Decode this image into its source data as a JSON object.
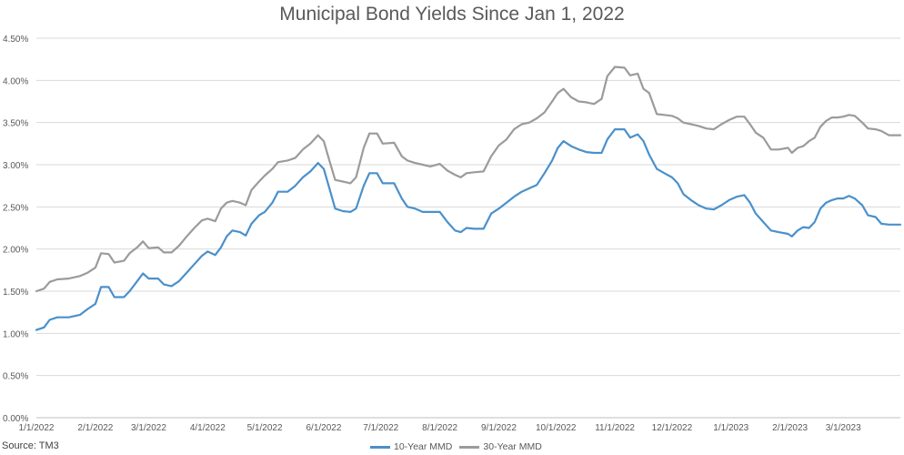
{
  "chart_data": {
    "type": "line",
    "title": "Municipal Bond Yields Since Jan 1, 2022",
    "source": "Source: TM3",
    "ylim": [
      0,
      4.5
    ],
    "y_ticks": [
      "0.00%",
      "0.50%",
      "1.00%",
      "1.50%",
      "2.00%",
      "2.50%",
      "3.00%",
      "3.50%",
      "4.00%",
      "4.50%"
    ],
    "x_range": [
      "2022-01-01",
      "2023-03-31"
    ],
    "x_ticks": [
      {
        "date": "2022-01-01",
        "label": "1/1/2022"
      },
      {
        "date": "2022-02-01",
        "label": "2/1/2022"
      },
      {
        "date": "2022-03-01",
        "label": "3/1/2022"
      },
      {
        "date": "2022-04-01",
        "label": "4/1/2022"
      },
      {
        "date": "2022-05-01",
        "label": "5/1/2022"
      },
      {
        "date": "2022-06-01",
        "label": "6/1/2022"
      },
      {
        "date": "2022-07-01",
        "label": "7/1/2022"
      },
      {
        "date": "2022-08-01",
        "label": "8/1/2022"
      },
      {
        "date": "2022-09-01",
        "label": "9/1/2022"
      },
      {
        "date": "2022-10-01",
        "label": "10/1/2022"
      },
      {
        "date": "2022-11-01",
        "label": "11/1/2022"
      },
      {
        "date": "2022-12-01",
        "label": "12/1/2022"
      },
      {
        "date": "2023-01-01",
        "label": "1/1/2023"
      },
      {
        "date": "2023-02-01",
        "label": "2/1/2023"
      },
      {
        "date": "2023-03-01",
        "label": "3/1/2023"
      }
    ],
    "grid": true,
    "legend_position": "bottom",
    "series": [
      {
        "name": "10-Year MMD",
        "color": "#4a90cb",
        "points": [
          [
            "2022-01-01",
            1.04
          ],
          [
            "2022-01-05",
            1.07
          ],
          [
            "2022-01-08",
            1.16
          ],
          [
            "2022-01-12",
            1.19
          ],
          [
            "2022-01-18",
            1.19
          ],
          [
            "2022-01-24",
            1.22
          ],
          [
            "2022-01-28",
            1.29
          ],
          [
            "2022-02-01",
            1.35
          ],
          [
            "2022-02-04",
            1.55
          ],
          [
            "2022-02-08",
            1.55
          ],
          [
            "2022-02-11",
            1.43
          ],
          [
            "2022-02-16",
            1.43
          ],
          [
            "2022-02-19",
            1.5
          ],
          [
            "2022-02-23",
            1.62
          ],
          [
            "2022-02-26",
            1.71
          ],
          [
            "2022-03-01",
            1.65
          ],
          [
            "2022-03-06",
            1.65
          ],
          [
            "2022-03-09",
            1.58
          ],
          [
            "2022-03-13",
            1.56
          ],
          [
            "2022-03-17",
            1.62
          ],
          [
            "2022-03-21",
            1.72
          ],
          [
            "2022-03-25",
            1.82
          ],
          [
            "2022-03-29",
            1.92
          ],
          [
            "2022-04-01",
            1.97
          ],
          [
            "2022-04-05",
            1.93
          ],
          [
            "2022-04-08",
            2.02
          ],
          [
            "2022-04-11",
            2.15
          ],
          [
            "2022-04-14",
            2.22
          ],
          [
            "2022-04-18",
            2.2
          ],
          [
            "2022-04-21",
            2.16
          ],
          [
            "2022-04-24",
            2.3
          ],
          [
            "2022-04-28",
            2.4
          ],
          [
            "2022-05-01",
            2.44
          ],
          [
            "2022-05-05",
            2.55
          ],
          [
            "2022-05-08",
            2.68
          ],
          [
            "2022-05-13",
            2.68
          ],
          [
            "2022-05-17",
            2.75
          ],
          [
            "2022-05-21",
            2.85
          ],
          [
            "2022-05-25",
            2.92
          ],
          [
            "2022-05-29",
            3.02
          ],
          [
            "2022-06-01",
            2.95
          ],
          [
            "2022-06-04",
            2.72
          ],
          [
            "2022-06-07",
            2.48
          ],
          [
            "2022-06-11",
            2.45
          ],
          [
            "2022-06-15",
            2.44
          ],
          [
            "2022-06-18",
            2.48
          ],
          [
            "2022-06-22",
            2.75
          ],
          [
            "2022-06-25",
            2.9
          ],
          [
            "2022-06-29",
            2.9
          ],
          [
            "2022-07-02",
            2.78
          ],
          [
            "2022-07-08",
            2.78
          ],
          [
            "2022-07-12",
            2.6
          ],
          [
            "2022-07-15",
            2.5
          ],
          [
            "2022-07-19",
            2.48
          ],
          [
            "2022-07-23",
            2.44
          ],
          [
            "2022-07-27",
            2.44
          ],
          [
            "2022-08-01",
            2.44
          ],
          [
            "2022-08-05",
            2.32
          ],
          [
            "2022-08-09",
            2.22
          ],
          [
            "2022-08-12",
            2.2
          ],
          [
            "2022-08-15",
            2.25
          ],
          [
            "2022-08-19",
            2.24
          ],
          [
            "2022-08-24",
            2.24
          ],
          [
            "2022-08-28",
            2.42
          ],
          [
            "2022-09-01",
            2.48
          ],
          [
            "2022-09-05",
            2.55
          ],
          [
            "2022-09-09",
            2.62
          ],
          [
            "2022-09-13",
            2.68
          ],
          [
            "2022-09-17",
            2.72
          ],
          [
            "2022-09-21",
            2.76
          ],
          [
            "2022-09-25",
            2.9
          ],
          [
            "2022-09-29",
            3.05
          ],
          [
            "2022-10-02",
            3.2
          ],
          [
            "2022-10-05",
            3.28
          ],
          [
            "2022-10-09",
            3.22
          ],
          [
            "2022-10-13",
            3.18
          ],
          [
            "2022-10-17",
            3.15
          ],
          [
            "2022-10-21",
            3.14
          ],
          [
            "2022-10-25",
            3.14
          ],
          [
            "2022-10-28",
            3.3
          ],
          [
            "2022-11-01",
            3.42
          ],
          [
            "2022-11-06",
            3.42
          ],
          [
            "2022-11-09",
            3.32
          ],
          [
            "2022-11-13",
            3.36
          ],
          [
            "2022-11-16",
            3.28
          ],
          [
            "2022-11-19",
            3.12
          ],
          [
            "2022-11-23",
            2.95
          ],
          [
            "2022-11-27",
            2.9
          ],
          [
            "2022-12-01",
            2.85
          ],
          [
            "2022-12-04",
            2.78
          ],
          [
            "2022-12-07",
            2.65
          ],
          [
            "2022-12-11",
            2.58
          ],
          [
            "2022-12-15",
            2.52
          ],
          [
            "2022-12-19",
            2.48
          ],
          [
            "2022-12-23",
            2.47
          ],
          [
            "2022-12-27",
            2.52
          ],
          [
            "2022-12-31",
            2.58
          ],
          [
            "2023-01-04",
            2.62
          ],
          [
            "2023-01-08",
            2.64
          ],
          [
            "2023-01-11",
            2.55
          ],
          [
            "2023-01-14",
            2.42
          ],
          [
            "2023-01-18",
            2.32
          ],
          [
            "2023-01-22",
            2.22
          ],
          [
            "2023-01-26",
            2.2
          ],
          [
            "2023-01-31",
            2.18
          ],
          [
            "2023-02-02",
            2.15
          ],
          [
            "2023-02-05",
            2.22
          ],
          [
            "2023-02-08",
            2.26
          ],
          [
            "2023-02-11",
            2.25
          ],
          [
            "2023-02-14",
            2.32
          ],
          [
            "2023-02-17",
            2.48
          ],
          [
            "2023-02-20",
            2.55
          ],
          [
            "2023-02-23",
            2.58
          ],
          [
            "2023-02-26",
            2.6
          ],
          [
            "2023-03-01",
            2.6
          ],
          [
            "2023-03-04",
            2.63
          ],
          [
            "2023-03-07",
            2.6
          ],
          [
            "2023-03-11",
            2.52
          ],
          [
            "2023-03-14",
            2.4
          ],
          [
            "2023-03-18",
            2.38
          ],
          [
            "2023-03-21",
            2.3
          ],
          [
            "2023-03-25",
            2.29
          ],
          [
            "2023-03-31",
            2.29
          ]
        ]
      },
      {
        "name": "30-Year MMD",
        "color": "#9b9b9b",
        "points": [
          [
            "2022-01-01",
            1.5
          ],
          [
            "2022-01-05",
            1.53
          ],
          [
            "2022-01-08",
            1.61
          ],
          [
            "2022-01-12",
            1.64
          ],
          [
            "2022-01-18",
            1.65
          ],
          [
            "2022-01-24",
            1.68
          ],
          [
            "2022-01-28",
            1.72
          ],
          [
            "2022-02-01",
            1.78
          ],
          [
            "2022-02-04",
            1.95
          ],
          [
            "2022-02-08",
            1.94
          ],
          [
            "2022-02-11",
            1.84
          ],
          [
            "2022-02-16",
            1.86
          ],
          [
            "2022-02-19",
            1.95
          ],
          [
            "2022-02-23",
            2.02
          ],
          [
            "2022-02-26",
            2.09
          ],
          [
            "2022-03-01",
            2.01
          ],
          [
            "2022-03-06",
            2.02
          ],
          [
            "2022-03-09",
            1.96
          ],
          [
            "2022-03-13",
            1.96
          ],
          [
            "2022-03-17",
            2.04
          ],
          [
            "2022-03-21",
            2.15
          ],
          [
            "2022-03-25",
            2.25
          ],
          [
            "2022-03-29",
            2.34
          ],
          [
            "2022-04-01",
            2.36
          ],
          [
            "2022-04-05",
            2.33
          ],
          [
            "2022-04-08",
            2.48
          ],
          [
            "2022-04-11",
            2.55
          ],
          [
            "2022-04-14",
            2.57
          ],
          [
            "2022-04-18",
            2.55
          ],
          [
            "2022-04-21",
            2.52
          ],
          [
            "2022-04-24",
            2.7
          ],
          [
            "2022-04-28",
            2.8
          ],
          [
            "2022-05-01",
            2.87
          ],
          [
            "2022-05-05",
            2.95
          ],
          [
            "2022-05-08",
            3.03
          ],
          [
            "2022-05-13",
            3.05
          ],
          [
            "2022-05-17",
            3.08
          ],
          [
            "2022-05-21",
            3.18
          ],
          [
            "2022-05-25",
            3.25
          ],
          [
            "2022-05-29",
            3.35
          ],
          [
            "2022-06-01",
            3.28
          ],
          [
            "2022-06-04",
            3.05
          ],
          [
            "2022-06-07",
            2.82
          ],
          [
            "2022-06-11",
            2.8
          ],
          [
            "2022-06-15",
            2.78
          ],
          [
            "2022-06-18",
            2.85
          ],
          [
            "2022-06-22",
            3.2
          ],
          [
            "2022-06-25",
            3.37
          ],
          [
            "2022-06-29",
            3.37
          ],
          [
            "2022-07-02",
            3.25
          ],
          [
            "2022-07-08",
            3.26
          ],
          [
            "2022-07-12",
            3.1
          ],
          [
            "2022-07-15",
            3.05
          ],
          [
            "2022-07-19",
            3.02
          ],
          [
            "2022-07-23",
            3.0
          ],
          [
            "2022-07-27",
            2.98
          ],
          [
            "2022-08-01",
            3.01
          ],
          [
            "2022-08-05",
            2.93
          ],
          [
            "2022-08-09",
            2.88
          ],
          [
            "2022-08-12",
            2.85
          ],
          [
            "2022-08-15",
            2.9
          ],
          [
            "2022-08-19",
            2.91
          ],
          [
            "2022-08-24",
            2.92
          ],
          [
            "2022-08-28",
            3.1
          ],
          [
            "2022-09-01",
            3.23
          ],
          [
            "2022-09-05",
            3.3
          ],
          [
            "2022-09-09",
            3.42
          ],
          [
            "2022-09-13",
            3.48
          ],
          [
            "2022-09-17",
            3.5
          ],
          [
            "2022-09-21",
            3.55
          ],
          [
            "2022-09-25",
            3.62
          ],
          [
            "2022-09-29",
            3.75
          ],
          [
            "2022-10-02",
            3.85
          ],
          [
            "2022-10-05",
            3.9
          ],
          [
            "2022-10-09",
            3.8
          ],
          [
            "2022-10-13",
            3.75
          ],
          [
            "2022-10-17",
            3.74
          ],
          [
            "2022-10-21",
            3.72
          ],
          [
            "2022-10-25",
            3.78
          ],
          [
            "2022-10-28",
            4.05
          ],
          [
            "2022-11-01",
            4.16
          ],
          [
            "2022-11-06",
            4.15
          ],
          [
            "2022-11-09",
            4.06
          ],
          [
            "2022-11-13",
            4.08
          ],
          [
            "2022-11-16",
            3.9
          ],
          [
            "2022-11-19",
            3.85
          ],
          [
            "2022-11-23",
            3.6
          ],
          [
            "2022-11-27",
            3.59
          ],
          [
            "2022-12-01",
            3.58
          ],
          [
            "2022-12-04",
            3.55
          ],
          [
            "2022-12-07",
            3.5
          ],
          [
            "2022-12-11",
            3.48
          ],
          [
            "2022-12-15",
            3.46
          ],
          [
            "2022-12-19",
            3.43
          ],
          [
            "2022-12-23",
            3.42
          ],
          [
            "2022-12-27",
            3.48
          ],
          [
            "2022-12-31",
            3.53
          ],
          [
            "2023-01-04",
            3.57
          ],
          [
            "2023-01-08",
            3.57
          ],
          [
            "2023-01-11",
            3.48
          ],
          [
            "2023-01-14",
            3.38
          ],
          [
            "2023-01-18",
            3.32
          ],
          [
            "2023-01-22",
            3.18
          ],
          [
            "2023-01-26",
            3.18
          ],
          [
            "2023-01-31",
            3.2
          ],
          [
            "2023-02-02",
            3.14
          ],
          [
            "2023-02-05",
            3.2
          ],
          [
            "2023-02-08",
            3.22
          ],
          [
            "2023-02-11",
            3.28
          ],
          [
            "2023-02-14",
            3.32
          ],
          [
            "2023-02-17",
            3.45
          ],
          [
            "2023-02-20",
            3.52
          ],
          [
            "2023-02-23",
            3.56
          ],
          [
            "2023-02-26",
            3.56
          ],
          [
            "2023-03-01",
            3.57
          ],
          [
            "2023-03-04",
            3.59
          ],
          [
            "2023-03-07",
            3.58
          ],
          [
            "2023-03-11",
            3.5
          ],
          [
            "2023-03-14",
            3.43
          ],
          [
            "2023-03-18",
            3.42
          ],
          [
            "2023-03-21",
            3.4
          ],
          [
            "2023-03-25",
            3.35
          ],
          [
            "2023-03-31",
            3.35
          ]
        ]
      }
    ]
  }
}
